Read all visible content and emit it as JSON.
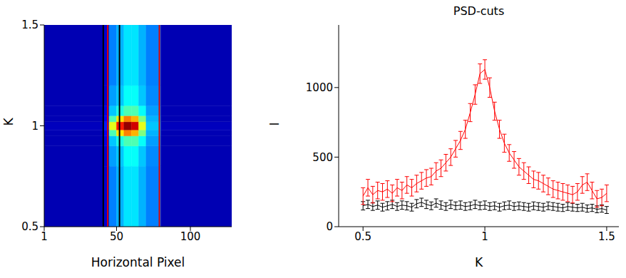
{
  "chart_data": [
    {
      "type": "heatmap",
      "xlabel": "Horizontal Pixel",
      "ylabel": "K",
      "xlim": [
        1,
        128
      ],
      "ylim": [
        0.5,
        1.5
      ],
      "xticks": [
        1,
        50,
        100
      ],
      "yticks": [
        0.5,
        1,
        1.5
      ],
      "x_edges": [
        1,
        41,
        45,
        50,
        55,
        60,
        65,
        70,
        80,
        128
      ],
      "y_edges": [
        0.5,
        0.8,
        0.9,
        0.95,
        0.98,
        1.02,
        1.05,
        1.1,
        1.2,
        1.5
      ],
      "cells": [
        [
          5,
          8,
          25,
          30,
          35,
          35,
          30,
          25,
          5
        ],
        [
          5,
          8,
          28,
          32,
          38,
          38,
          32,
          26,
          5
        ],
        [
          5,
          10,
          32,
          40,
          45,
          45,
          38,
          28,
          5
        ],
        [
          5,
          12,
          45,
          65,
          75,
          70,
          50,
          30,
          5
        ],
        [
          6,
          15,
          60,
          85,
          98,
          92,
          60,
          32,
          6
        ],
        [
          5,
          12,
          45,
          65,
          75,
          70,
          50,
          30,
          5
        ],
        [
          5,
          10,
          32,
          40,
          45,
          45,
          38,
          28,
          5
        ],
        [
          5,
          8,
          28,
          32,
          38,
          38,
          32,
          26,
          5
        ],
        [
          5,
          8,
          25,
          30,
          35,
          35,
          30,
          25,
          5
        ]
      ],
      "color_range": [
        0,
        100
      ],
      "lines": [
        {
          "x": 41,
          "color": "#000000"
        },
        {
          "x": 44,
          "color": "#e00000"
        },
        {
          "x": 52,
          "color": "#000000"
        },
        {
          "x": 79,
          "color": "#e00000"
        }
      ]
    },
    {
      "type": "line",
      "title": "PSD-cuts",
      "xlabel": "K",
      "ylabel": "I",
      "xlim": [
        0.4,
        1.55
      ],
      "ylim": [
        0,
        1450
      ],
      "xticks": [
        0.5,
        1,
        1.5
      ],
      "yticks": [
        0,
        500,
        1000
      ],
      "x": [
        0.5,
        0.52,
        0.54,
        0.56,
        0.58,
        0.6,
        0.62,
        0.64,
        0.66,
        0.68,
        0.7,
        0.72,
        0.74,
        0.76,
        0.78,
        0.8,
        0.82,
        0.84,
        0.86,
        0.88,
        0.9,
        0.92,
        0.94,
        0.96,
        0.98,
        1.0,
        1.02,
        1.04,
        1.06,
        1.08,
        1.1,
        1.12,
        1.14,
        1.16,
        1.18,
        1.2,
        1.22,
        1.24,
        1.26,
        1.28,
        1.3,
        1.32,
        1.34,
        1.36,
        1.38,
        1.4,
        1.42,
        1.44,
        1.46,
        1.48,
        1.5
      ],
      "series": [
        {
          "color": "#000000",
          "values": [
            150,
            160,
            145,
            155,
            140,
            150,
            160,
            145,
            155,
            150,
            140,
            165,
            175,
            160,
            150,
            170,
            155,
            145,
            160,
            150,
            155,
            145,
            150,
            160,
            150,
            155,
            145,
            150,
            140,
            150,
            155,
            145,
            150,
            145,
            140,
            150,
            145,
            140,
            150,
            145,
            140,
            135,
            145,
            140,
            135,
            140,
            130,
            135,
            125,
            130,
            120
          ],
          "errors": [
            30,
            30,
            28,
            30,
            28,
            30,
            30,
            28,
            30,
            30,
            28,
            30,
            30,
            30,
            28,
            30,
            30,
            28,
            30,
            28,
            30,
            28,
            28,
            30,
            28,
            30,
            28,
            28,
            28,
            28,
            30,
            28,
            28,
            28,
            28,
            28,
            28,
            28,
            28,
            28,
            28,
            26,
            28,
            28,
            26,
            28,
            26,
            26,
            25,
            26,
            25
          ]
        },
        {
          "color": "#ff0000",
          "values": [
            220,
            280,
            230,
            260,
            250,
            270,
            240,
            280,
            260,
            300,
            280,
            310,
            330,
            350,
            360,
            400,
            420,
            460,
            500,
            560,
            620,
            700,
            820,
            950,
            1100,
            1130,
            1000,
            830,
            700,
            600,
            530,
            480,
            430,
            400,
            370,
            340,
            330,
            310,
            290,
            270,
            260,
            250,
            240,
            230,
            250,
            300,
            320,
            260,
            200,
            210,
            240
          ],
          "errors": [
            60,
            60,
            60,
            60,
            60,
            60,
            60,
            60,
            60,
            60,
            60,
            60,
            60,
            60,
            60,
            60,
            60,
            60,
            60,
            60,
            65,
            65,
            65,
            70,
            70,
            70,
            70,
            65,
            65,
            65,
            60,
            60,
            60,
            60,
            60,
            60,
            60,
            60,
            60,
            60,
            60,
            60,
            60,
            60,
            60,
            60,
            60,
            60,
            60,
            60,
            60
          ]
        }
      ]
    }
  ]
}
